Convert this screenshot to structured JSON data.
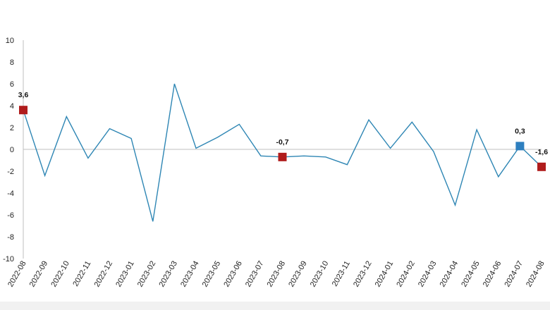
{
  "chart_data": {
    "type": "line",
    "x": [
      "2022-08",
      "2022-09",
      "2022-10",
      "2022-11",
      "2022-12",
      "2023-01",
      "2023-02",
      "2023-03",
      "2023-04",
      "2023-05",
      "2023-06",
      "2023-07",
      "2023-08",
      "2023-09",
      "2023-10",
      "2023-11",
      "2023-12",
      "2024-01",
      "2024-02",
      "2024-03",
      "2024-04",
      "2024-05",
      "2024-06",
      "2024-07",
      "2024-08"
    ],
    "series": [
      {
        "values": [
          3.6,
          -2.4,
          3.0,
          -0.8,
          1.9,
          1.0,
          -6.6,
          6.0,
          0.1,
          1.1,
          2.3,
          -0.6,
          -0.7,
          -0.6,
          -0.7,
          -1.4,
          2.7,
          0.1,
          2.5,
          -0.2,
          -5.1,
          1.8,
          -2.5,
          0.3,
          -1.6
        ]
      }
    ],
    "ylim": [
      -10,
      10
    ],
    "yticks": [
      "10",
      "8",
      "6",
      "4",
      "2",
      "0",
      "-2",
      "-4",
      "-6",
      "-8",
      "-10"
    ],
    "grid": false,
    "colors": {
      "line": "#2e86b4",
      "marker_red": "#b01c1c",
      "marker_blue": "#2e7fbf",
      "axis": "#bfbfbf"
    },
    "highlighted_points": [
      {
        "x": "2022-08",
        "label": "3,6",
        "color": "#b01c1c"
      },
      {
        "x": "2023-08",
        "label": "-0,7",
        "color": "#b01c1c"
      },
      {
        "x": "2024-07",
        "label": "0,3",
        "color": "#2e7fbf"
      },
      {
        "x": "2024-08",
        "label": "-1,6",
        "color": "#b01c1c"
      }
    ]
  }
}
